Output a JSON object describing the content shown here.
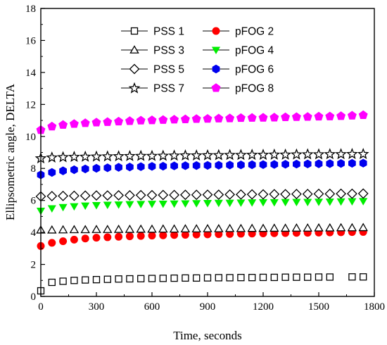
{
  "chart_data": {
    "type": "scatter",
    "xlabel": "Time, seconds",
    "ylabel": "Ellipsometric angle, DELTA",
    "xlim": [
      0,
      1800
    ],
    "ylim": [
      0,
      18
    ],
    "xticks": [
      0,
      300,
      600,
      900,
      1200,
      1500,
      1800
    ],
    "yticks": [
      0,
      2,
      4,
      6,
      8,
      10,
      12,
      14,
      16,
      18
    ],
    "grid": false,
    "legend_position": "top-center",
    "series": [
      {
        "name": "PSS 1",
        "marker": "square-open",
        "color": "#000000",
        "x": [
          0,
          60,
          120,
          180,
          240,
          300,
          360,
          420,
          480,
          540,
          600,
          660,
          720,
          780,
          840,
          900,
          960,
          1020,
          1080,
          1140,
          1200,
          1260,
          1320,
          1380,
          1440,
          1500,
          1560,
          1680,
          1740
        ],
        "y": [
          0.35,
          0.88,
          0.95,
          1.0,
          1.03,
          1.05,
          1.07,
          1.09,
          1.1,
          1.11,
          1.12,
          1.13,
          1.14,
          1.15,
          1.15,
          1.16,
          1.17,
          1.17,
          1.18,
          1.18,
          1.19,
          1.19,
          1.2,
          1.2,
          1.2,
          1.21,
          1.21,
          1.22,
          1.22
        ]
      },
      {
        "name": "pFOG 2",
        "marker": "circle-filled",
        "color": "#ff0000",
        "x": [
          0,
          60,
          120,
          180,
          240,
          300,
          360,
          420,
          480,
          540,
          600,
          660,
          720,
          780,
          840,
          900,
          960,
          1020,
          1080,
          1140,
          1200,
          1260,
          1320,
          1380,
          1440,
          1500,
          1560,
          1620,
          1680,
          1740
        ],
        "y": [
          3.15,
          3.35,
          3.45,
          3.55,
          3.62,
          3.67,
          3.7,
          3.73,
          3.76,
          3.78,
          3.8,
          3.82,
          3.84,
          3.85,
          3.87,
          3.88,
          3.89,
          3.9,
          3.92,
          3.93,
          3.94,
          3.95,
          3.96,
          3.97,
          3.98,
          3.99,
          4.0,
          4.01,
          4.02,
          4.03
        ]
      },
      {
        "name": "PSS 3",
        "marker": "triangle-open",
        "color": "#000000",
        "x": [
          0,
          60,
          120,
          180,
          240,
          300,
          360,
          420,
          480,
          540,
          600,
          660,
          720,
          780,
          840,
          900,
          960,
          1020,
          1080,
          1140,
          1200,
          1260,
          1320,
          1380,
          1440,
          1500,
          1560,
          1620,
          1680,
          1740
        ],
        "y": [
          4.15,
          4.15,
          4.16,
          4.17,
          4.17,
          4.18,
          4.18,
          4.19,
          4.19,
          4.2,
          4.2,
          4.21,
          4.21,
          4.22,
          4.22,
          4.23,
          4.23,
          4.24,
          4.24,
          4.25,
          4.25,
          4.26,
          4.26,
          4.27,
          4.27,
          4.28,
          4.28,
          4.29,
          4.29,
          4.3
        ]
      },
      {
        "name": "pFOG 4",
        "marker": "triangle-down-filled",
        "color": "#00ee00",
        "x": [
          0,
          60,
          120,
          180,
          240,
          300,
          360,
          420,
          480,
          540,
          600,
          660,
          720,
          780,
          840,
          900,
          960,
          1020,
          1080,
          1140,
          1200,
          1260,
          1320,
          1380,
          1440,
          1500,
          1560,
          1620,
          1680,
          1740
        ],
        "y": [
          5.35,
          5.5,
          5.58,
          5.63,
          5.67,
          5.7,
          5.72,
          5.74,
          5.76,
          5.77,
          5.78,
          5.79,
          5.8,
          5.81,
          5.82,
          5.83,
          5.84,
          5.85,
          5.86,
          5.87,
          5.88,
          5.88,
          5.89,
          5.9,
          5.9,
          5.91,
          5.92,
          5.93,
          5.94,
          5.95
        ]
      },
      {
        "name": "PSS 5",
        "marker": "diamond-open",
        "color": "#000000",
        "x": [
          0,
          60,
          120,
          180,
          240,
          300,
          360,
          420,
          480,
          540,
          600,
          660,
          720,
          780,
          840,
          900,
          960,
          1020,
          1080,
          1140,
          1200,
          1260,
          1320,
          1380,
          1440,
          1500,
          1560,
          1620,
          1680,
          1740
        ],
        "y": [
          6.25,
          6.27,
          6.28,
          6.29,
          6.3,
          6.31,
          6.31,
          6.32,
          6.32,
          6.33,
          6.33,
          6.34,
          6.34,
          6.35,
          6.35,
          6.36,
          6.36,
          6.37,
          6.37,
          6.38,
          6.38,
          6.39,
          6.39,
          6.4,
          6.4,
          6.41,
          6.41,
          6.42,
          6.42,
          6.43
        ]
      },
      {
        "name": "pFOG 6",
        "marker": "hexagon-filled",
        "color": "#0000ee",
        "x": [
          0,
          60,
          120,
          180,
          240,
          300,
          360,
          420,
          480,
          540,
          600,
          660,
          720,
          780,
          840,
          900,
          960,
          1020,
          1080,
          1140,
          1200,
          1260,
          1320,
          1380,
          1440,
          1500,
          1560,
          1620,
          1680,
          1740
        ],
        "y": [
          7.6,
          7.75,
          7.85,
          7.92,
          7.97,
          8.01,
          8.04,
          8.07,
          8.09,
          8.11,
          8.13,
          8.14,
          8.16,
          8.17,
          8.18,
          8.19,
          8.2,
          8.21,
          8.22,
          8.23,
          8.24,
          8.25,
          8.26,
          8.27,
          8.28,
          8.29,
          8.3,
          8.31,
          8.32,
          8.33
        ]
      },
      {
        "name": "PSS 7",
        "marker": "star-open",
        "color": "#000000",
        "x": [
          0,
          60,
          120,
          180,
          240,
          300,
          360,
          420,
          480,
          540,
          600,
          660,
          720,
          780,
          840,
          900,
          960,
          1020,
          1080,
          1140,
          1200,
          1260,
          1320,
          1380,
          1440,
          1500,
          1560,
          1620,
          1680,
          1740
        ],
        "y": [
          8.65,
          8.7,
          8.72,
          8.74,
          8.75,
          8.76,
          8.77,
          8.78,
          8.79,
          8.8,
          8.8,
          8.81,
          8.82,
          8.83,
          8.83,
          8.84,
          8.85,
          8.86,
          8.86,
          8.87,
          8.87,
          8.88,
          8.88,
          8.89,
          8.9,
          8.9,
          8.91,
          8.91,
          8.92,
          8.92
        ]
      },
      {
        "name": "pFOG 8",
        "marker": "pentagon-filled",
        "color": "#ff00ff",
        "x": [
          0,
          60,
          120,
          180,
          240,
          300,
          360,
          420,
          480,
          540,
          600,
          660,
          720,
          780,
          840,
          900,
          960,
          1020,
          1080,
          1140,
          1200,
          1260,
          1320,
          1380,
          1440,
          1500,
          1560,
          1620,
          1680,
          1740
        ],
        "y": [
          10.4,
          10.62,
          10.72,
          10.78,
          10.83,
          10.87,
          10.9,
          10.93,
          10.96,
          10.99,
          11.01,
          11.03,
          11.05,
          11.07,
          11.09,
          11.1,
          11.12,
          11.13,
          11.15,
          11.16,
          11.17,
          11.18,
          11.2,
          11.21,
          11.22,
          11.24,
          11.25,
          11.27,
          11.3,
          11.33
        ]
      }
    ]
  }
}
